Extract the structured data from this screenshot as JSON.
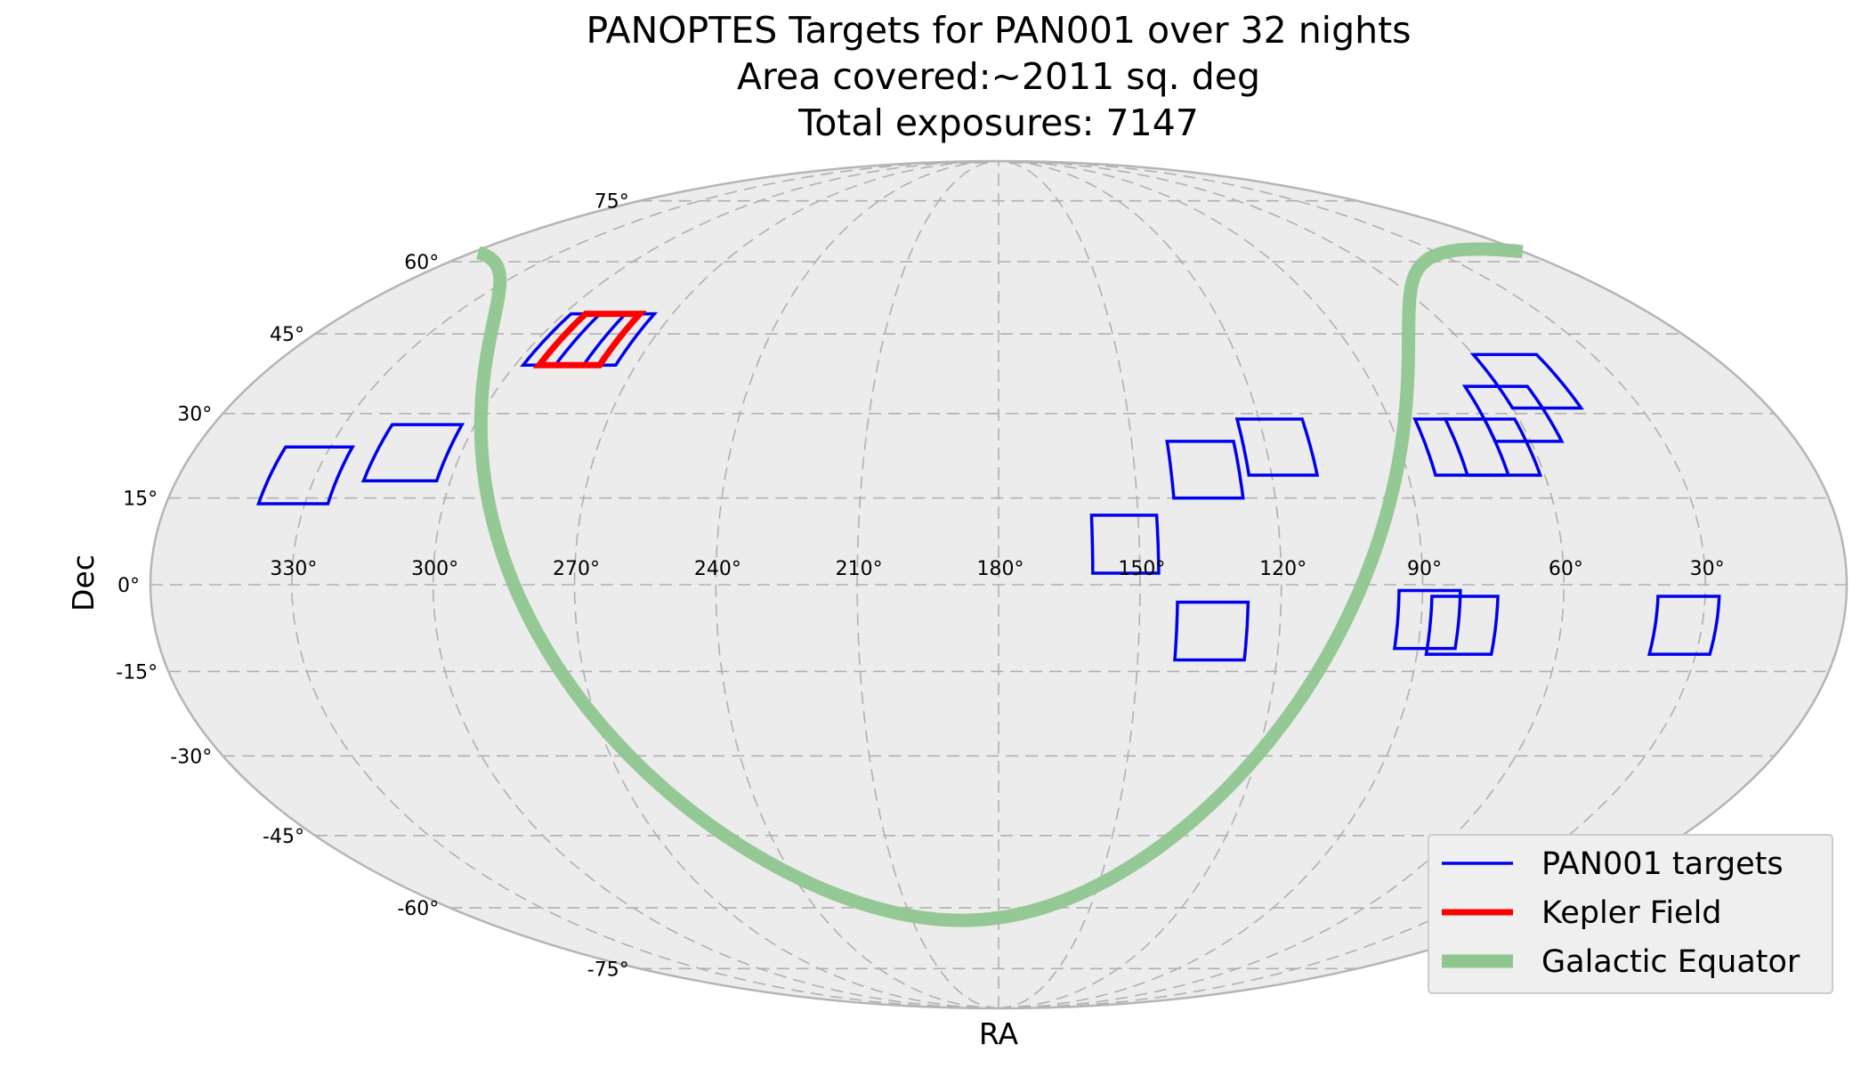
{
  "chart_data": {
    "type": "map",
    "projection": "mollweide",
    "title_lines": [
      "PANOPTES Targets for PAN001 over 32 nights",
      "Area covered:~2011 sq. deg",
      "Total exposures: 7147"
    ],
    "xlabel": "RA",
    "ylabel": "Dec",
    "ra_ticks": [
      330,
      300,
      270,
      240,
      210,
      180,
      150,
      120,
      90,
      60,
      30
    ],
    "ra_tick_labels": [
      "330°",
      "300°",
      "270°",
      "240°",
      "210°",
      "180°",
      "150°",
      "120°",
      "90°",
      "60°",
      "30°"
    ],
    "dec_ticks": [
      75,
      60,
      45,
      30,
      15,
      0,
      -15,
      -30,
      -45,
      -60,
      -75
    ],
    "dec_tick_labels": [
      "75°",
      "60°",
      "45°",
      "30°",
      "15°",
      "0°",
      "-15°",
      "-30°",
      "-45°",
      "-60°",
      "-75°"
    ],
    "grid": true,
    "legend_position": "bottom-right",
    "colors": {
      "background": "#ececec",
      "outline": "#b5b5b5",
      "grid": "#b0b0b0",
      "targets": "#0000ee",
      "kepler": "#ff0000",
      "galactic": "#8fc68f"
    },
    "legend": [
      {
        "label": "PAN001 targets",
        "series": "targets"
      },
      {
        "label": "Kepler Field",
        "series": "kepler"
      },
      {
        "label": "Galactic Equator",
        "series": "galactic"
      }
    ],
    "targets": [
      {
        "ra_min": 325,
        "ra_max": 340,
        "dec_min": 14,
        "dec_max": 24
      },
      {
        "ra_min": 303,
        "ra_max": 319,
        "dec_min": 18,
        "dec_max": 28
      },
      {
        "ra_min": 283,
        "ra_max": 298,
        "dec_min": 39,
        "dec_max": 49
      },
      {
        "ra_min": 275,
        "ra_max": 290,
        "dec_min": 39,
        "dec_max": 49
      },
      {
        "ra_min": 146,
        "ra_max": 160,
        "dec_min": 2,
        "dec_max": 12
      },
      {
        "ra_min": 127,
        "ra_max": 142,
        "dec_min": 15,
        "dec_max": 25
      },
      {
        "ra_min": 110,
        "ra_max": 125,
        "dec_min": 19,
        "dec_max": 29
      },
      {
        "ra_min": 127,
        "ra_max": 142,
        "dec_min": -13,
        "dec_max": -3
      },
      {
        "ra_min": 82,
        "ra_max": 95,
        "dec_min": -11,
        "dec_max": -1
      },
      {
        "ra_min": 74,
        "ra_max": 88,
        "dec_min": -12,
        "dec_max": -2
      },
      {
        "ra_min": 27,
        "ra_max": 40,
        "dec_min": -12,
        "dec_max": -2
      },
      {
        "ra_min": 68,
        "ra_max": 84,
        "dec_min": 19,
        "dec_max": 29
      },
      {
        "ra_min": 61,
        "ra_max": 77,
        "dec_min": 19,
        "dec_max": 29
      },
      {
        "ra_min": 53,
        "ra_max": 68,
        "dec_min": 25,
        "dec_max": 35
      },
      {
        "ra_min": 44,
        "ra_max": 60,
        "dec_min": 31,
        "dec_max": 41
      }
    ],
    "kepler_field": {
      "ra_min": 279,
      "ra_max": 294,
      "dec_min": 39,
      "dec_max": 49
    },
    "galactic_equator": {
      "north_pole_ra": 192.86,
      "north_pole_dec": 27.13,
      "ascending_node_ra": 282.86
    }
  }
}
